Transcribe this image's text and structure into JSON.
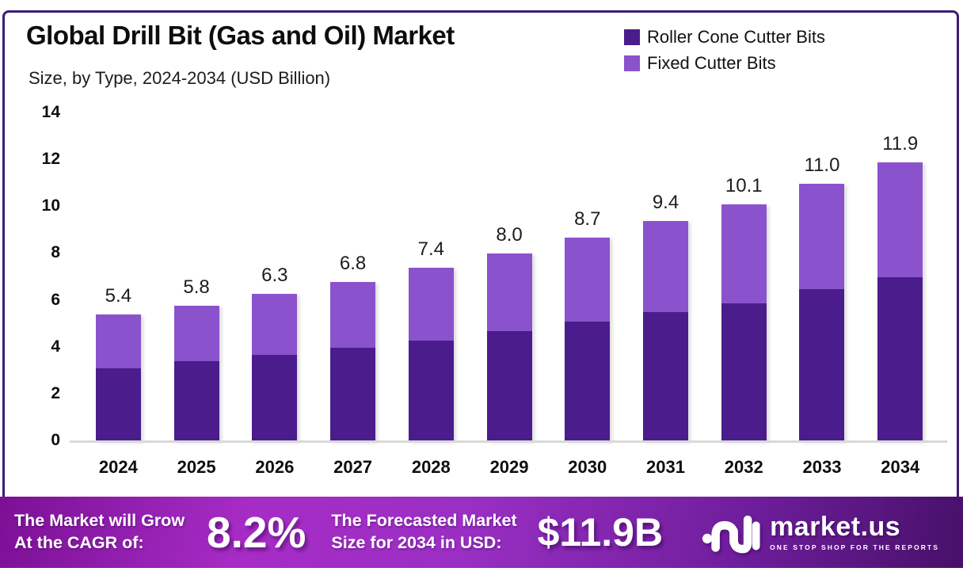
{
  "header": {
    "title": "Global Drill Bit (Gas and Oil) Market",
    "subtitle": "Size, by Type, 2024-2034 (USD Billion)"
  },
  "chart_data": {
    "type": "bar",
    "stacked": true,
    "title": "Global Drill Bit (Gas and Oil) Market",
    "subtitle": "Size, by Type, 2024-2034 (USD Billion)",
    "categories": [
      "2024",
      "2025",
      "2026",
      "2027",
      "2028",
      "2029",
      "2030",
      "2031",
      "2032",
      "2033",
      "2034"
    ],
    "series": [
      {
        "name": "Roller Cone Cutter Bits",
        "color": "#4a1c8c",
        "values": [
          3.1,
          3.4,
          3.7,
          4.0,
          4.3,
          4.7,
          5.1,
          5.5,
          5.9,
          6.5,
          7.0
        ]
      },
      {
        "name": "Fixed Cutter Bits",
        "color": "#8b52cd",
        "values": [
          2.3,
          2.4,
          2.6,
          2.8,
          3.1,
          3.3,
          3.6,
          3.9,
          4.2,
          4.5,
          4.9
        ]
      }
    ],
    "totals_labels": [
      "5.4",
      "5.8",
      "6.3",
      "6.8",
      "7.4",
      "8.0",
      "8.7",
      "9.4",
      "10.1",
      "11.0",
      "11.9"
    ],
    "ylim": [
      0,
      14
    ],
    "yticks": [
      0,
      2,
      4,
      6,
      8,
      10,
      12,
      14
    ],
    "grid": false,
    "legend_position": "top-right"
  },
  "banner": {
    "left_line1": "The Market will Grow",
    "left_line2": "At the CAGR of:",
    "cagr_value": "8.2%",
    "right_line1": "The Forecasted Market",
    "right_line2": "Size for 2034 in USD:",
    "forecast_value": "$11.9B"
  },
  "logo": {
    "name": "market.us",
    "tagline": "ONE STOP SHOP FOR THE REPORTS"
  },
  "colors": {
    "roller_cone_series": "#4a1c8c",
    "fixed_cutter_series": "#8b52cd",
    "frame_border": "#3b1d76",
    "baseline": "#d9d9d9",
    "banner_gradient_start": "#7c1095",
    "banner_gradient_mid": "#a72cc6",
    "banner_gradient_end": "#471069"
  }
}
